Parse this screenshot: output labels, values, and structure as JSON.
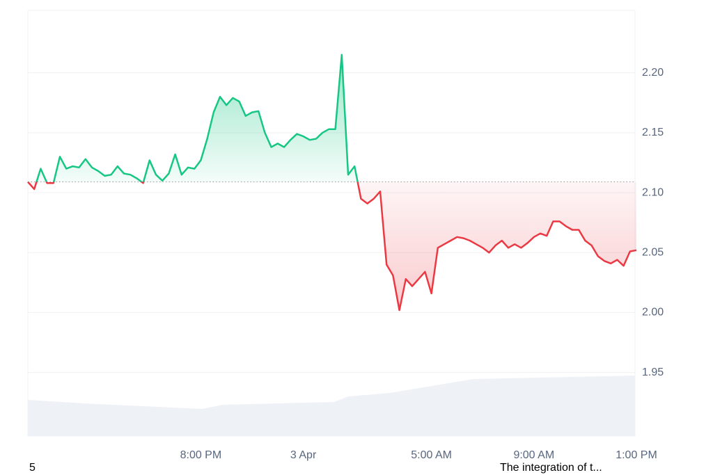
{
  "chart_data": {
    "type": "line",
    "categories": [
      null,
      null,
      null,
      null,
      null,
      null,
      null,
      null,
      null,
      null,
      null,
      null,
      null,
      null,
      null,
      null,
      null,
      null,
      null,
      null,
      null,
      null,
      null,
      null,
      null,
      null,
      null,
      "8:00 PM",
      null,
      null,
      null,
      null,
      null,
      null,
      null,
      null,
      null,
      null,
      null,
      null,
      null,
      null,
      null,
      "3 Apr",
      null,
      null,
      null,
      null,
      null,
      null,
      null,
      null,
      null,
      null,
      null,
      null,
      null,
      null,
      null,
      null,
      null,
      null,
      null,
      "5:00 AM",
      null,
      null,
      null,
      null,
      null,
      null,
      null,
      null,
      null,
      null,
      null,
      null,
      null,
      null,
      null,
      "9:00 AM",
      null,
      null,
      null,
      null,
      null,
      null,
      null,
      null,
      null,
      null,
      null,
      null,
      null,
      null,
      null,
      "1:00 PM"
    ],
    "values": [
      2.109,
      2.103,
      2.12,
      2.108,
      2.108,
      2.13,
      2.12,
      2.122,
      2.121,
      2.128,
      2.121,
      2.118,
      2.114,
      2.115,
      2.122,
      2.116,
      2.115,
      2.112,
      2.108,
      2.127,
      2.115,
      2.11,
      2.116,
      2.132,
      2.115,
      2.121,
      2.12,
      2.127,
      2.145,
      2.167,
      2.18,
      2.173,
      2.179,
      2.176,
      2.164,
      2.167,
      2.168,
      2.15,
      2.138,
      2.141,
      2.138,
      2.144,
      2.149,
      2.147,
      2.144,
      2.145,
      2.15,
      2.153,
      2.153,
      2.215,
      2.115,
      2.122,
      2.095,
      2.091,
      2.095,
      2.101,
      2.04,
      2.031,
      2.002,
      2.028,
      2.022,
      2.028,
      2.034,
      2.016,
      2.054,
      2.057,
      2.06,
      2.063,
      2.062,
      2.06,
      2.057,
      2.054,
      2.05,
      2.056,
      2.06,
      2.054,
      2.057,
      2.054,
      2.058,
      2.063,
      2.066,
      2.064,
      2.076,
      2.076,
      2.072,
      2.069,
      2.069,
      2.06,
      2.056,
      2.047,
      2.043,
      2.041,
      2.044,
      2.039,
      2.051,
      2.052
    ],
    "baseline": 2.109,
    "up_color": "#16c784",
    "down_color": "#ea3943",
    "ylim": [
      1.897,
      2.252
    ],
    "yticks": [
      {
        "value": 2.2,
        "label": "2.20"
      },
      2.15,
      {
        "value": 2.1,
        "label": "2.10"
      },
      2.05,
      {
        "value": 2.0,
        "label": "2.00"
      },
      1.95
    ],
    "grid": true
  },
  "news": [
    "5",
    "The integration of t..."
  ]
}
